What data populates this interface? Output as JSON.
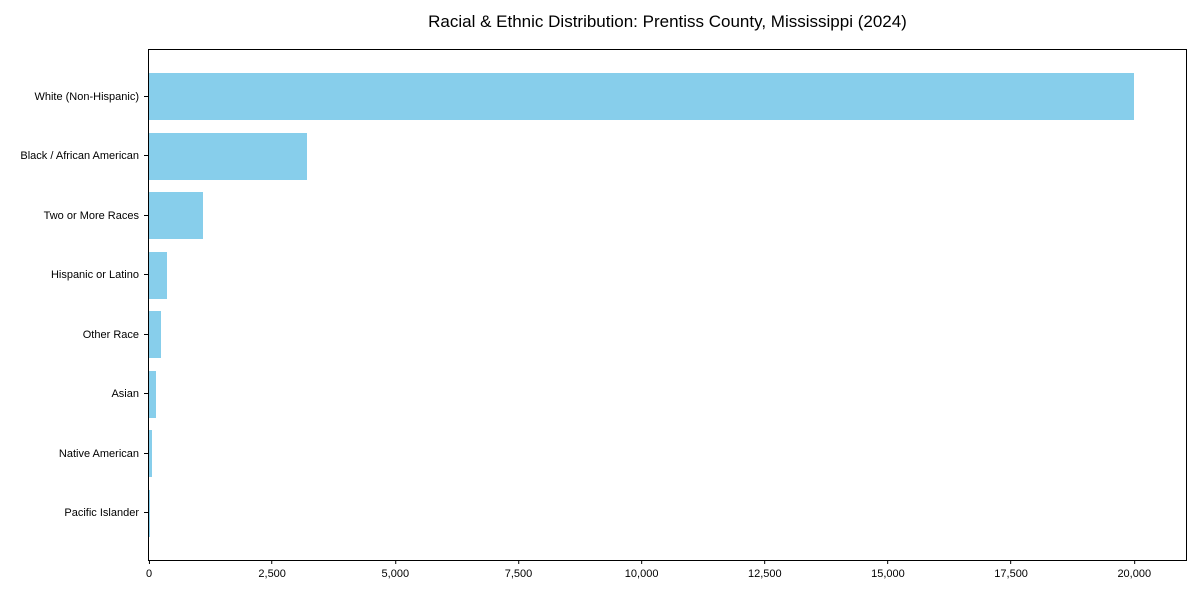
{
  "chart_data": {
    "type": "bar",
    "orientation": "horizontal",
    "title": "Racial & Ethnic Distribution: Prentiss County, Mississippi (2024)",
    "categories": [
      "White (Non-Hispanic)",
      "Black / African American",
      "Two or More Races",
      "Hispanic or Latino",
      "Other Race",
      "Asian",
      "Native American",
      "Pacific Islander"
    ],
    "values": [
      20000,
      3200,
      1100,
      370,
      240,
      140,
      55,
      5
    ],
    "xlabel": "",
    "ylabel": "",
    "xlim": [
      0,
      21050
    ],
    "xticks": [
      0,
      2500,
      5000,
      7500,
      10000,
      12500,
      15000,
      17500,
      20000
    ],
    "xtick_labels": [
      "0",
      "2,500",
      "5,000",
      "7,500",
      "10,000",
      "12,500",
      "15,000",
      "17,500",
      "20,000"
    ],
    "bar_color": "#87CEEB",
    "grid": false,
    "legend": null,
    "background_color": "#ffffff",
    "spine_color": "#000000"
  }
}
